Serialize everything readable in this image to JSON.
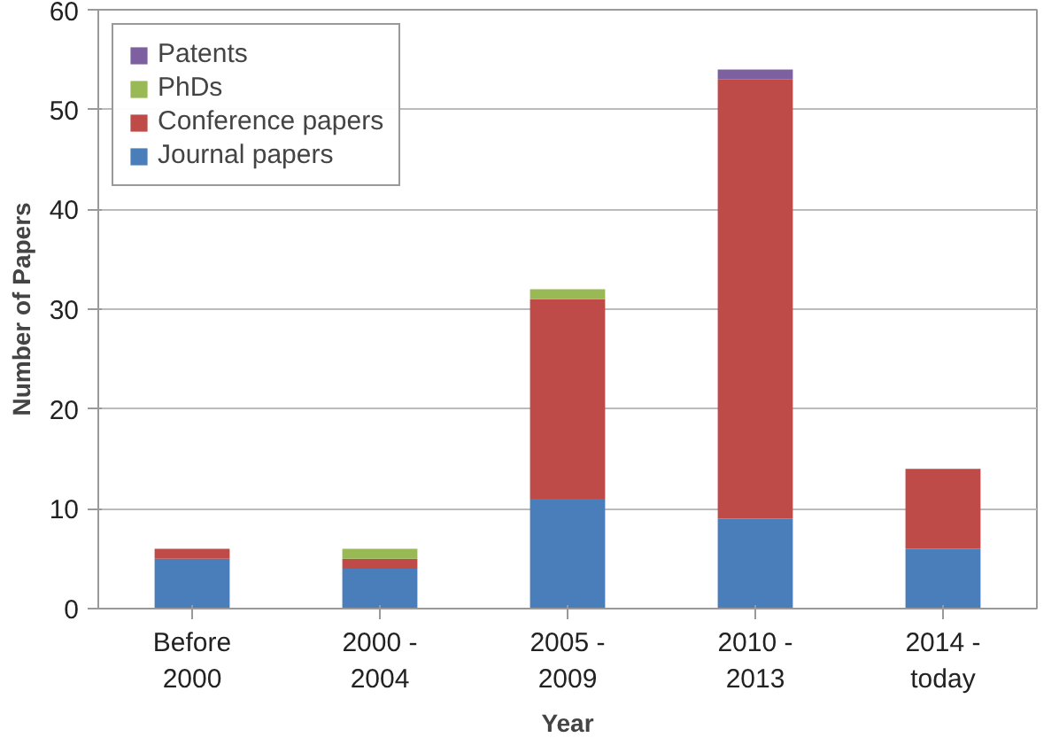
{
  "chart_data": {
    "type": "bar",
    "stacked": true,
    "xlabel": "Year",
    "ylabel": "Number of Papers",
    "categories": [
      "Before\n2000",
      "2000 -\n2004",
      "2005 -\n2009",
      "2010 -\n2013",
      "2014 -\ntoday"
    ],
    "series": [
      {
        "name": "Journal papers",
        "color": "#4a7ebb",
        "values": [
          5,
          4,
          11,
          9,
          6
        ]
      },
      {
        "name": "Conference papers",
        "color": "#be4b48",
        "values": [
          1,
          1,
          20,
          44,
          8
        ]
      },
      {
        "name": "PhDs",
        "color": "#98b954",
        "values": [
          0,
          1,
          1,
          0,
          0
        ]
      },
      {
        "name": "Patents",
        "color": "#7d60a0",
        "values": [
          0,
          0,
          0,
          1,
          0
        ]
      }
    ],
    "ylim": [
      0,
      60
    ],
    "yticks": [
      0,
      10,
      20,
      30,
      40,
      50,
      60
    ],
    "grid": "y",
    "legend": "top left"
  }
}
